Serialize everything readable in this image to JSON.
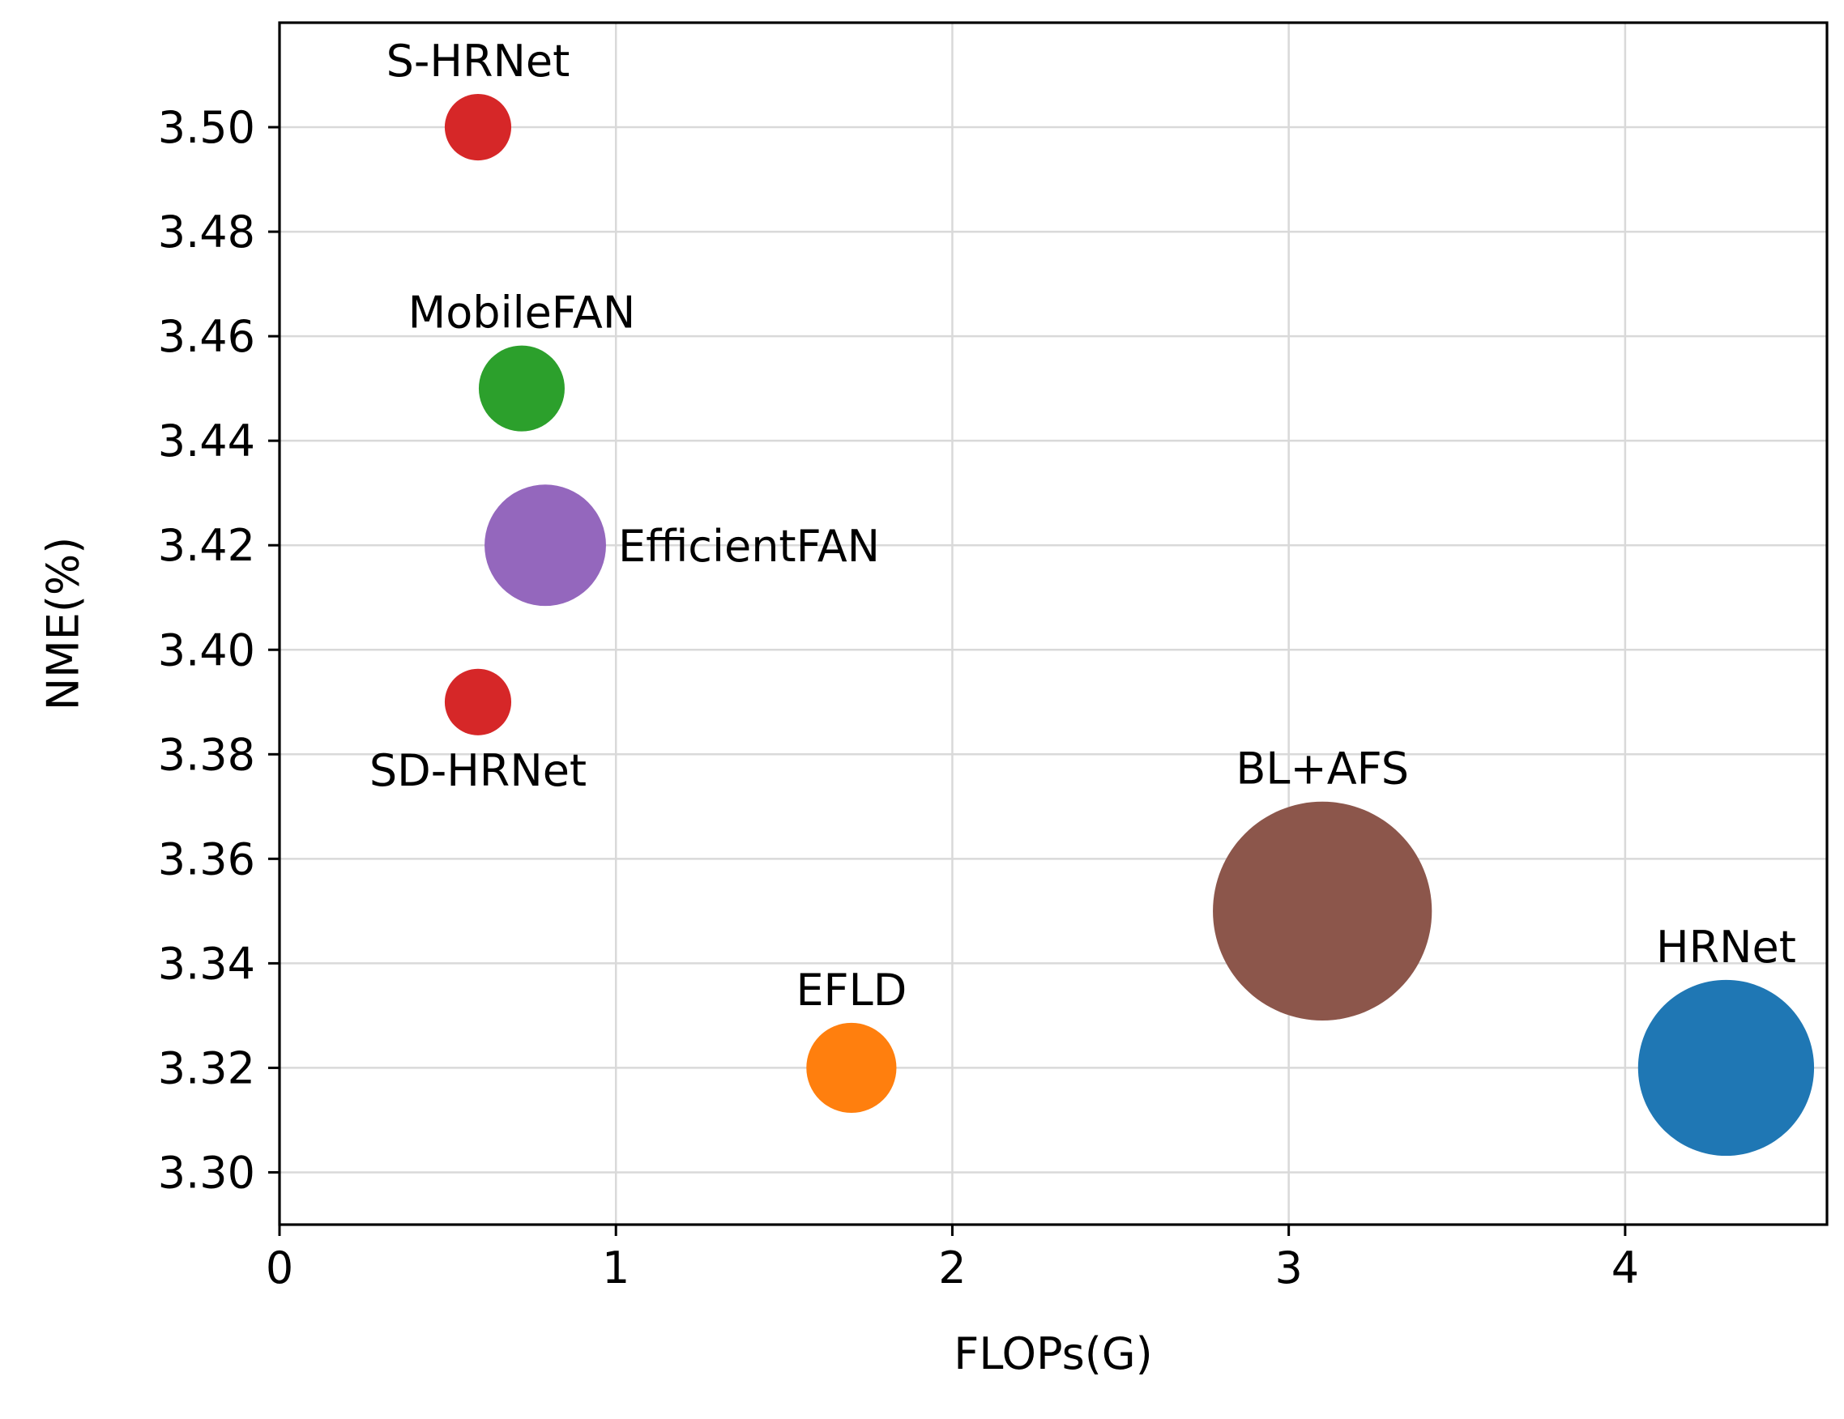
{
  "chart_data": {
    "type": "scatter",
    "title": "",
    "xlabel": "FLOPs(G)",
    "ylabel": "NME(%)",
    "xlim": [
      0,
      4.6
    ],
    "ylim": [
      3.29,
      3.52
    ],
    "grid": true,
    "x_ticks": [
      0,
      1,
      2,
      3,
      4
    ],
    "x_tick_labels": [
      "0",
      "1",
      "2",
      "3",
      "4"
    ],
    "y_ticks": [
      3.3,
      3.32,
      3.34,
      3.36,
      3.38,
      3.4,
      3.42,
      3.44,
      3.46,
      3.48,
      3.5
    ],
    "y_tick_labels": [
      "3.30",
      "3.32",
      "3.34",
      "3.36",
      "3.38",
      "3.40",
      "3.42",
      "3.44",
      "3.46",
      "3.48",
      "3.50"
    ],
    "points": [
      {
        "name": "S-HRNet",
        "label": "S-HRNet",
        "x": 0.59,
        "y": 3.5,
        "size": 0.6,
        "color": "#d62728",
        "label_position": "above"
      },
      {
        "name": "MobileFAN",
        "label": "MobileFAN",
        "x": 0.72,
        "y": 3.45,
        "size": 1.0,
        "color": "#2ca02c",
        "label_position": "above"
      },
      {
        "name": "EfficientFAN",
        "label": "EfficientFAN",
        "x": 0.79,
        "y": 3.42,
        "size": 2.0,
        "color": "#9467bd",
        "label_position": "right"
      },
      {
        "name": "SD-HRNet",
        "label": "SD-HRNet",
        "x": 0.59,
        "y": 3.39,
        "size": 0.6,
        "color": "#d62728",
        "label_position": "below"
      },
      {
        "name": "EFLD",
        "label": "EFLD",
        "x": 1.7,
        "y": 3.32,
        "size": 1.1,
        "color": "#ff7f0e",
        "label_position": "above"
      },
      {
        "name": "BL+AFS",
        "label": "BL+AFS",
        "x": 3.1,
        "y": 3.35,
        "size": 6.5,
        "color": "#8c564b",
        "label_position": "above"
      },
      {
        "name": "HRNet",
        "label": "HRNet",
        "x": 4.3,
        "y": 3.32,
        "size": 4.2,
        "color": "#1f77b4",
        "label_position": "above"
      }
    ]
  }
}
